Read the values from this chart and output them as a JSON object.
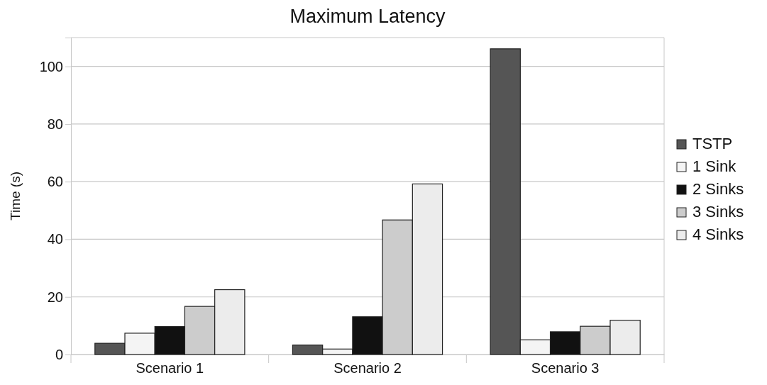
{
  "chart_data": {
    "type": "bar",
    "title": "Maximum Latency",
    "ylabel": "Time (s)",
    "categories": [
      "Scenario 1",
      "Scenario 2",
      "Scenario 3"
    ],
    "series": [
      {
        "name": "TSTP",
        "color": "#555555",
        "values": [
          3.9,
          3.3,
          106.1
        ]
      },
      {
        "name": "1 Sink",
        "color": "#f4f4f4",
        "values": [
          7.4,
          1.9,
          5.1
        ]
      },
      {
        "name": "2 Sinks",
        "color": "#111111",
        "values": [
          9.7,
          13.1,
          7.9
        ]
      },
      {
        "name": "3 Sinks",
        "color": "#cccccc",
        "values": [
          16.7,
          46.7,
          9.8
        ]
      },
      {
        "name": "4 Sinks",
        "color": "#ececec",
        "values": [
          22.5,
          59.2,
          11.9
        ]
      }
    ],
    "ylim": [
      0,
      110
    ],
    "yticks": [
      0,
      20,
      40,
      60,
      80,
      100
    ],
    "grid": "y",
    "legend": "right"
  }
}
